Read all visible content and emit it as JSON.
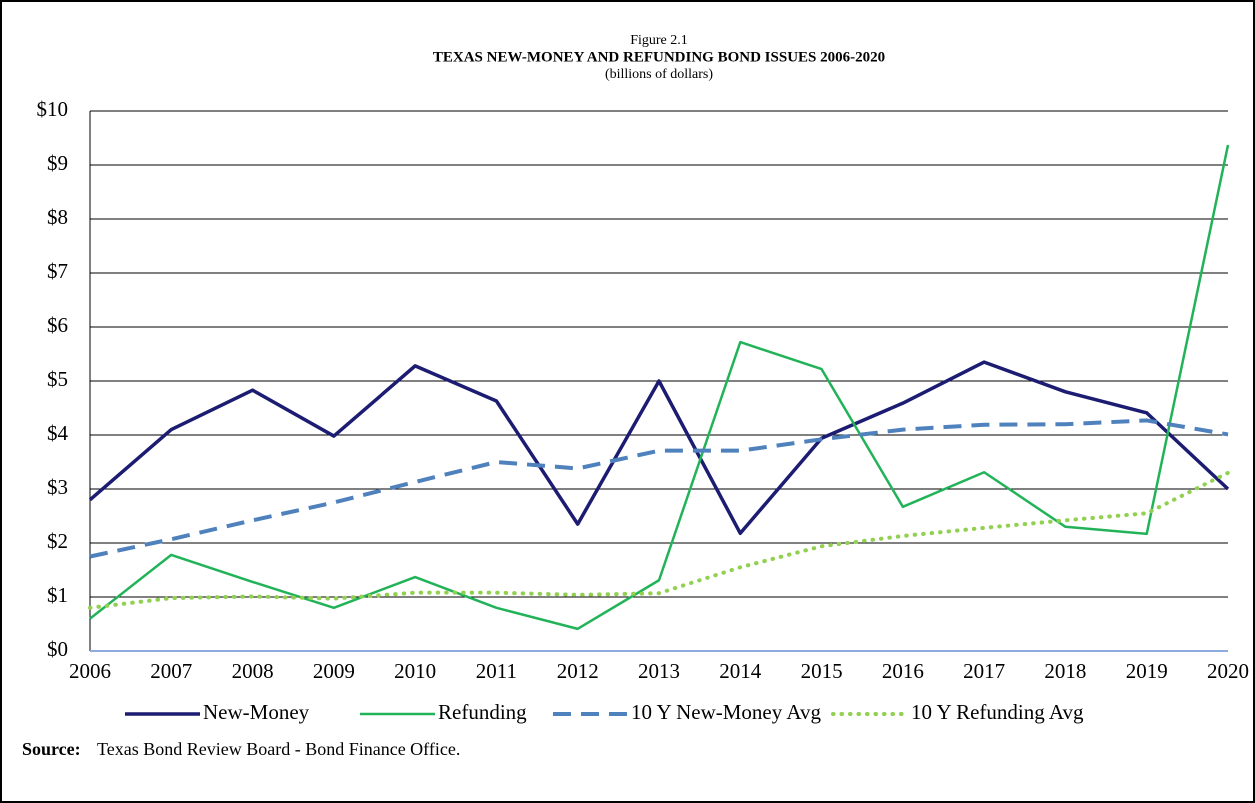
{
  "chart_data": {
    "type": "line",
    "figure_label": "Figure 2.1",
    "title": "TEXAS NEW-MONEY AND REFUNDING BOND ISSUES 2006-2020",
    "subtitle": "(billions of dollars)",
    "categories": [
      "2006",
      "2007",
      "2008",
      "2009",
      "2010",
      "2011",
      "2012",
      "2013",
      "2014",
      "2015",
      "2016",
      "2017",
      "2018",
      "2019",
      "2020"
    ],
    "series": [
      {
        "name": "New-Money",
        "color": "#1c1c72",
        "style": "solid",
        "values": [
          2.8,
          4.1,
          4.83,
          3.98,
          5.28,
          4.63,
          2.35,
          5.0,
          2.18,
          3.94,
          4.59,
          5.35,
          4.8,
          4.41,
          3.0
        ]
      },
      {
        "name": "Refunding",
        "color": "#22b358",
        "style": "solid",
        "values": [
          0.6,
          1.78,
          1.28,
          0.8,
          1.37,
          0.8,
          0.41,
          1.31,
          5.72,
          5.22,
          2.67,
          3.31,
          2.3,
          2.17,
          9.37
        ]
      },
      {
        "name": "10 Y New-Money Avg",
        "color": "#4f81bd",
        "style": "dashed",
        "values": [
          1.75,
          2.07,
          2.42,
          2.75,
          3.13,
          3.5,
          3.38,
          3.71,
          3.71,
          3.92,
          4.1,
          4.19,
          4.2,
          4.27,
          4.01
        ]
      },
      {
        "name": "10 Y Refunding Avg",
        "color": "#92d050",
        "style": "dotted",
        "values": [
          0.8,
          0.98,
          1.01,
          0.97,
          1.08,
          1.08,
          1.04,
          1.07,
          1.55,
          1.94,
          2.13,
          2.28,
          2.42,
          2.55,
          3.3
        ]
      }
    ],
    "ylim": [
      0,
      10
    ],
    "yticks": [
      {
        "value": 0,
        "label": "$0"
      },
      {
        "value": 1,
        "label": "$1"
      },
      {
        "value": 2,
        "label": "$2"
      },
      {
        "value": 3,
        "label": "$3"
      },
      {
        "value": 4,
        "label": "$4"
      },
      {
        "value": 5,
        "label": "$5"
      },
      {
        "value": 6,
        "label": "$6"
      },
      {
        "value": 7,
        "label": "$7"
      },
      {
        "value": 8,
        "label": "$8"
      },
      {
        "value": 9,
        "label": "$9"
      },
      {
        "value": 10,
        "label": "$10"
      }
    ],
    "grid": true,
    "legend": "bottom",
    "source_label": "Source:",
    "source": "Texas Bond Review Board - Bond Finance Office."
  }
}
